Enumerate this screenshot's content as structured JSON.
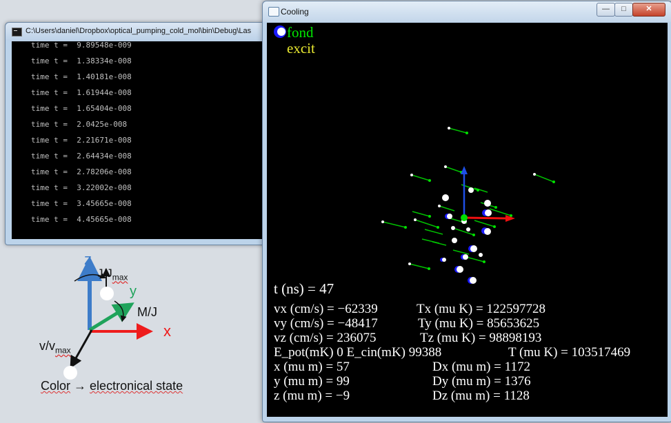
{
  "console_window": {
    "title": "C:\\Users\\daniel\\Dropbox\\optical_pumping_cold_mol\\bin\\Debug\\Las",
    "lines": [
      "time t =  9.89548e-009",
      "time t =  1.38334e-008",
      "time t =  1.40181e-008",
      "time t =  1.61944e-008",
      "time t =  1.65404e-008",
      "time t =  2.0425e-008",
      "time t =  2.21671e-008",
      "time t =  2.64434e-008",
      "time t =  2.78206e-008",
      "time t =  3.22002e-008",
      "time t =  3.45665e-008",
      "time t =  4.45665e-008"
    ]
  },
  "legend": {
    "z_label": "z",
    "y_label": "y",
    "x_label": "x",
    "j_label": "J/J",
    "j_sub": "max",
    "mj_label": "M/J",
    "v_label": "v/v",
    "v_sub": "max",
    "color_label": "Color",
    "arrow": "→",
    "state_label": "electronical state",
    "colors": {
      "z": "#3d7cc9",
      "y": "#1fa35b",
      "x": "#ee1c1c"
    }
  },
  "cooling_window": {
    "title": "Cooling",
    "buttons": {
      "minimize": "—",
      "maximize": "□",
      "close": "✕"
    },
    "legend_fond": "fond",
    "legend_excit": "excit",
    "time_line": "t (ns) = 47",
    "stats": [
      {
        "label": "vx (cm/s) = −62339",
        "extra": "Tx (mu K) = 122597728"
      },
      {
        "label": "vy (cm/s) = −48417",
        "extra": "Ty (mu K) = 85653625"
      },
      {
        "label": "vz (cm/s) = 236075",
        "extra": "Tz (mu K) = 98898193"
      },
      {
        "label": "E_pot(mK) 0  E_cin(mK)  99388",
        "extra": "T (mu K) = 103517469"
      },
      {
        "label": "x (mu m) = 57",
        "extra": "Dx (mu m) = 1172"
      },
      {
        "label": "y (mu m) = 99",
        "extra": "Dy (mu m) = 1376"
      },
      {
        "label": "z (mu m) = −9",
        "extra": "Dz (mu m) = 1128"
      }
    ],
    "colors": {
      "fond": "#00e800",
      "excit": "#e8e830",
      "text": "#ffffff",
      "axis_z": "#1e4fe6",
      "axis_x": "#f01010"
    }
  }
}
